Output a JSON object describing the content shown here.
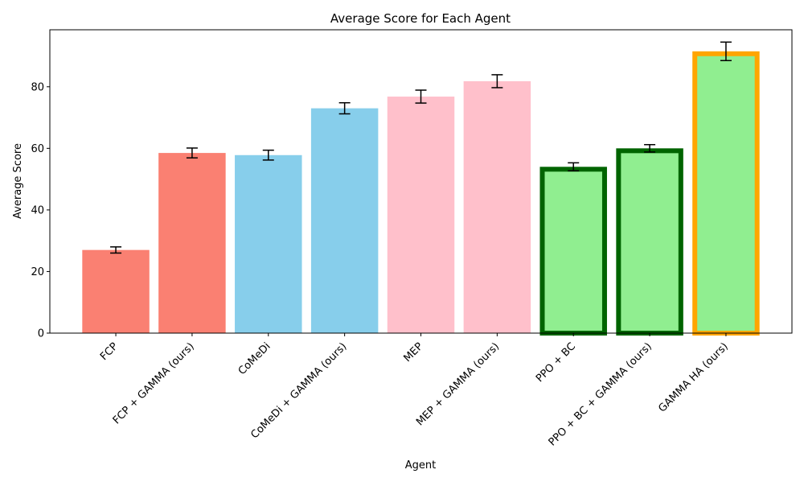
{
  "chart_data": {
    "type": "bar",
    "title": "Average Score for Each Agent",
    "xlabel": "Agent",
    "ylabel": "Average Score",
    "ylim": [
      0,
      98.5
    ],
    "yticks": [
      0,
      20,
      40,
      60,
      80
    ],
    "grid": false,
    "categories": [
      "FCP",
      "FCP + GAMMA (ours)",
      "CoMeDi",
      "CoMeDi + GAMMA (ours)",
      "MEP",
      "MEP + GAMMA (ours)",
      "PPO + BC",
      "PPO + BC + GAMMA (ours)",
      "GAMMA HA (ours)"
    ],
    "values": [
      27,
      58.5,
      57.8,
      73,
      76.8,
      81.8,
      54,
      60,
      91.5
    ],
    "errors": [
      1.0,
      1.6,
      1.6,
      1.8,
      2.1,
      2.1,
      1.3,
      1.2,
      3.0
    ],
    "bar_colors": [
      "#fa8072",
      "#fa8072",
      "#87ceeb",
      "#87ceeb",
      "#ffc0cb",
      "#ffc0cb",
      "#90ee90",
      "#90ee90",
      "#90ee90"
    ],
    "edge_colors": [
      "",
      "",
      "",
      "",
      "",
      "",
      "#006400",
      "#006400",
      "#ffa500"
    ]
  }
}
